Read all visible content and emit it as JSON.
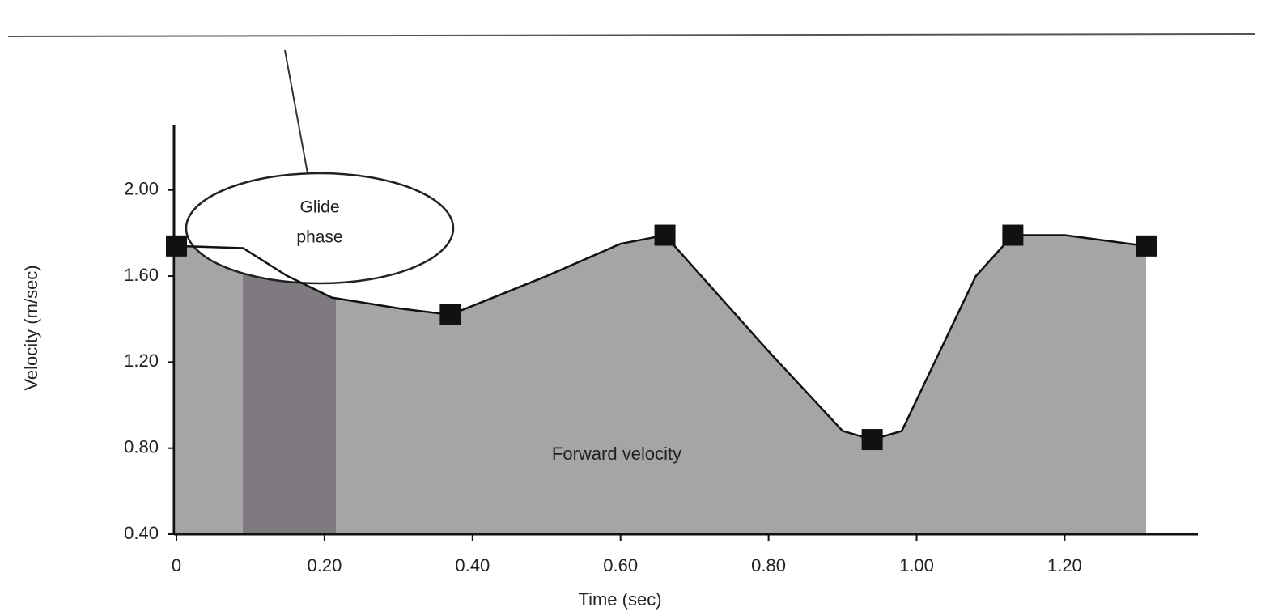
{
  "chart_data": {
    "type": "area",
    "x_label": "Time (sec)",
    "y_label": "Velocity (m/sec)",
    "annotations": [
      "Glide phase",
      "Forward velocity"
    ],
    "x": [
      0,
      0.09,
      0.15,
      0.21,
      0.3,
      0.37,
      0.5,
      0.6,
      0.66,
      0.8,
      0.9,
      0.94,
      0.98,
      1.08,
      1.13,
      1.2,
      1.31
    ],
    "values": [
      1.74,
      1.73,
      1.6,
      1.5,
      1.45,
      1.42,
      1.6,
      1.75,
      1.79,
      1.25,
      0.88,
      0.84,
      0.88,
      1.6,
      1.79,
      1.79,
      1.74
    ],
    "color": "#a7a4a8",
    "markers": {
      "x": [
        0,
        0.37,
        0.66,
        0.94,
        1.13,
        1.31
      ],
      "values": [
        1.74,
        1.42,
        1.79,
        0.84,
        1.79,
        1.74
      ],
      "color": "#111111"
    },
    "xlim": [
      0,
      1.38
    ],
    "ylim": [
      0.4,
      2.3
    ],
    "xticks": [
      0,
      {
        "value": 0.2,
        "label": "0.20"
      },
      {
        "value": 0.4,
        "label": "0.40"
      },
      {
        "value": 0.6,
        "label": "0.60"
      },
      {
        "value": 0.8,
        "label": "0.80"
      },
      {
        "value": 1.0,
        "label": "1.00"
      },
      {
        "value": 1.2,
        "label": "1.20"
      }
    ],
    "yticks": [
      {
        "value": 0.4,
        "label": "0.40"
      },
      {
        "value": 0.8,
        "label": "0.80"
      },
      {
        "value": 1.2,
        "label": "1.20"
      },
      {
        "value": 1.6,
        "label": "1.60"
      },
      {
        "value": 2.0,
        "label": "2.00"
      }
    ]
  }
}
